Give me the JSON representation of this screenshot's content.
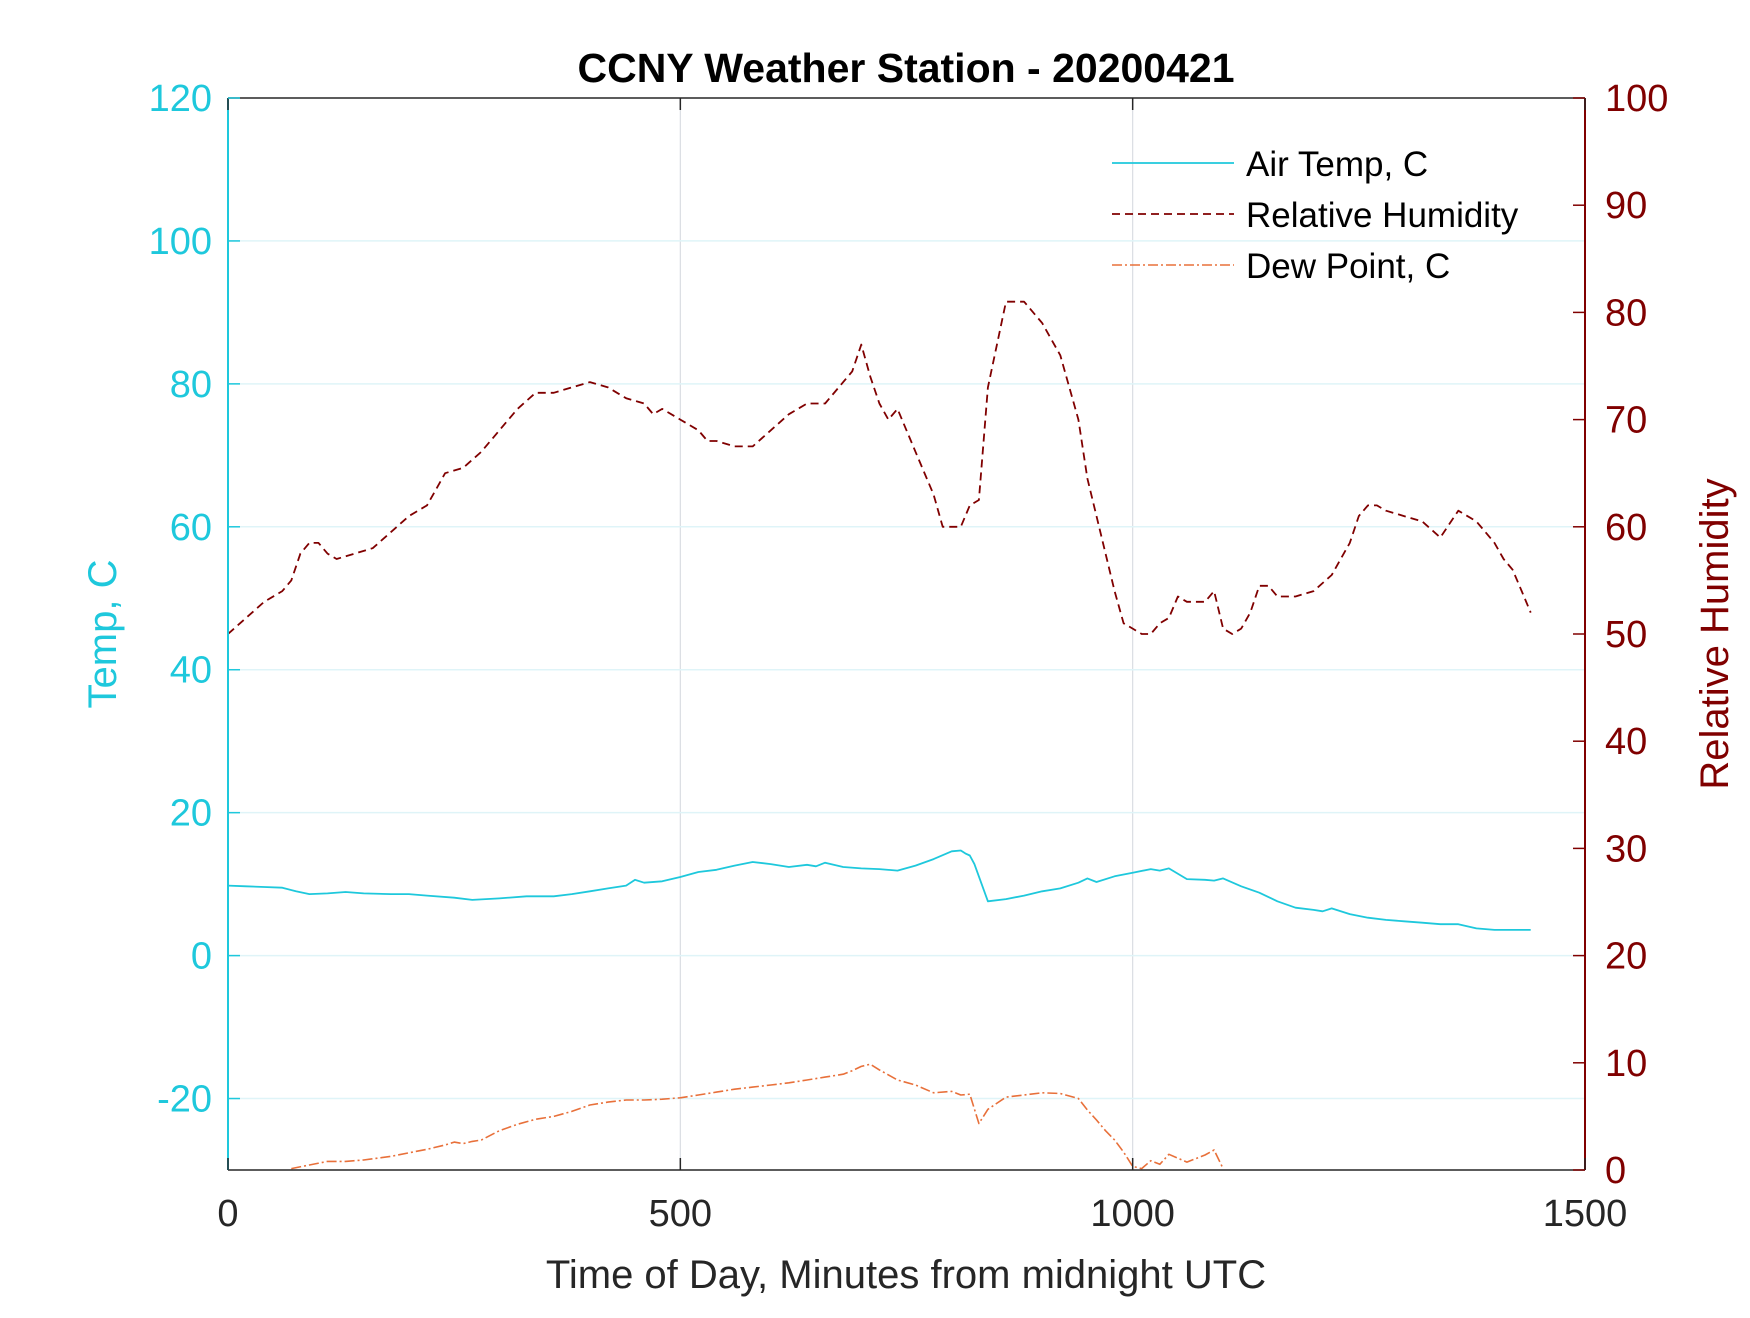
{
  "chart_data": {
    "type": "line",
    "title": "CCNY Weather Station - 20200421",
    "xlabel": "Time of Day, Minutes from midnight UTC",
    "ylabel_left": "Temp, C",
    "ylabel_right": "Relative Humidity",
    "xlim": [
      0,
      1500
    ],
    "ylim_left": [
      -30,
      120
    ],
    "ylim_right": [
      0,
      100
    ],
    "x_ticks": [
      0,
      500,
      1000,
      1500
    ],
    "y_ticks_left": [
      -20,
      0,
      20,
      40,
      60,
      80,
      100,
      120
    ],
    "y_ticks_right": [
      0,
      10,
      20,
      30,
      40,
      50,
      60,
      70,
      80,
      90,
      100
    ],
    "x_grid": true,
    "y_grid": true,
    "legend_position": "top-right",
    "colors": {
      "left_axis": "#1ec8dc",
      "right_axis": "#800000",
      "air_temp": "#1ec8dc",
      "humidity": "#800000",
      "dew_point": "#e8703a",
      "grid": "#d9dde3",
      "frame": "#000000"
    },
    "series": [
      {
        "name": "Air Temp, C",
        "axis": "left",
        "style": "solid",
        "x": [
          0,
          20,
          40,
          60,
          75,
          90,
          110,
          130,
          150,
          180,
          200,
          220,
          250,
          270,
          300,
          330,
          360,
          380,
          400,
          420,
          440,
          450,
          460,
          480,
          500,
          520,
          540,
          560,
          580,
          600,
          620,
          640,
          650,
          660,
          680,
          700,
          720,
          740,
          760,
          780,
          800,
          810,
          815,
          820,
          825,
          840,
          860,
          880,
          900,
          920,
          940,
          950,
          960,
          980,
          1000,
          1020,
          1030,
          1040,
          1060,
          1080,
          1090,
          1100,
          1120,
          1140,
          1160,
          1180,
          1200,
          1210,
          1220,
          1240,
          1260,
          1280,
          1300,
          1320,
          1340,
          1360,
          1380,
          1400,
          1420,
          1440
        ],
        "y": [
          9.8,
          9.7,
          9.6,
          9.5,
          9.0,
          8.6,
          8.7,
          8.9,
          8.7,
          8.6,
          8.6,
          8.4,
          8.1,
          7.8,
          8.0,
          8.3,
          8.3,
          8.6,
          9.0,
          9.4,
          9.8,
          10.6,
          10.2,
          10.4,
          11.0,
          11.7,
          12.0,
          12.6,
          13.1,
          12.8,
          12.4,
          12.7,
          12.5,
          13.0,
          12.4,
          12.2,
          12.1,
          11.9,
          12.6,
          13.5,
          14.6,
          14.7,
          14.3,
          14.0,
          12.8,
          7.6,
          7.9,
          8.4,
          9.0,
          9.4,
          10.2,
          10.8,
          10.3,
          11.1,
          11.6,
          12.1,
          11.9,
          12.2,
          10.7,
          10.6,
          10.5,
          10.8,
          9.7,
          8.8,
          7.6,
          6.7,
          6.4,
          6.2,
          6.6,
          5.8,
          5.3,
          5.0,
          4.8,
          4.6,
          4.4,
          4.4,
          3.8,
          3.6,
          3.6,
          3.6
        ]
      },
      {
        "name": "Relative Humidity",
        "axis": "right",
        "style": "dashed",
        "x": [
          0,
          20,
          40,
          60,
          70,
          80,
          90,
          100,
          110,
          120,
          140,
          160,
          180,
          200,
          220,
          230,
          240,
          260,
          280,
          300,
          320,
          340,
          360,
          380,
          400,
          420,
          430,
          440,
          460,
          470,
          480,
          500,
          520,
          530,
          540,
          560,
          580,
          600,
          620,
          640,
          660,
          680,
          690,
          700,
          710,
          720,
          730,
          740,
          760,
          780,
          790,
          800,
          810,
          820,
          830,
          840,
          860,
          880,
          900,
          920,
          940,
          950,
          960,
          980,
          990,
          1000,
          1010,
          1020,
          1030,
          1040,
          1050,
          1060,
          1070,
          1080,
          1090,
          1100,
          1110,
          1120,
          1130,
          1140,
          1150,
          1160,
          1180,
          1200,
          1220,
          1230,
          1240,
          1250,
          1260,
          1270,
          1280,
          1300,
          1320,
          1340,
          1360,
          1380,
          1400,
          1410,
          1420,
          1430,
          1440
        ],
        "y": [
          50,
          51.5,
          53,
          54,
          55,
          57.5,
          58.5,
          58.5,
          57.5,
          57,
          57.5,
          58,
          59.5,
          61,
          62,
          63.5,
          65,
          65.5,
          67,
          69,
          71,
          72.5,
          72.5,
          73,
          73.5,
          73,
          72.5,
          72,
          71.5,
          70.5,
          71,
          70,
          69,
          68,
          68,
          67.5,
          67.5,
          69,
          70.5,
          71.5,
          71.5,
          73.5,
          74.5,
          77,
          74,
          71.5,
          70,
          71,
          67,
          63,
          60,
          60,
          60,
          62,
          62.5,
          73,
          81,
          81,
          79,
          76,
          70,
          64.5,
          61,
          54,
          51,
          50.5,
          50,
          50,
          51,
          51.5,
          53.5,
          53,
          53,
          53,
          54,
          50.5,
          50,
          50.5,
          52,
          54.5,
          54.5,
          53.5,
          53.5,
          54,
          55.5,
          57,
          58.5,
          61,
          62,
          62,
          61.5,
          61,
          60.5,
          59,
          61.5,
          60.5,
          58.5,
          57,
          56,
          54,
          52
        ]
      },
      {
        "name": "Dew Point, C",
        "axis": "left",
        "style": "dashdot",
        "x": [
          70,
          90,
          110,
          130,
          150,
          180,
          200,
          220,
          240,
          250,
          260,
          270,
          280,
          300,
          320,
          340,
          360,
          380,
          400,
          420,
          440,
          460,
          480,
          500,
          520,
          540,
          560,
          580,
          600,
          620,
          640,
          660,
          680,
          690,
          700,
          710,
          720,
          740,
          760,
          780,
          800,
          810,
          820,
          830,
          840,
          860,
          880,
          900,
          920,
          940,
          950,
          960,
          970,
          980,
          990,
          1000,
          1010,
          1020,
          1030,
          1040,
          1060,
          1080,
          1090,
          1100
        ],
        "y": [
          -29.8,
          -29.3,
          -28.8,
          -28.8,
          -28.6,
          -28.1,
          -27.6,
          -27.1,
          -26.5,
          -26.1,
          -26.3,
          -26.0,
          -25.8,
          -24.5,
          -23.6,
          -22.9,
          -22.5,
          -21.8,
          -20.9,
          -20.5,
          -20.2,
          -20.2,
          -20.1,
          -19.9,
          -19.5,
          -19.1,
          -18.7,
          -18.4,
          -18.1,
          -17.8,
          -17.4,
          -17.0,
          -16.6,
          -16.1,
          -15.5,
          -15.2,
          -16.0,
          -17.4,
          -18.1,
          -19.2,
          -19.0,
          -19.5,
          -19.4,
          -23.5,
          -21.5,
          -19.8,
          -19.5,
          -19.2,
          -19.3,
          -20.0,
          -21.6,
          -23.0,
          -24.5,
          -25.8,
          -27.5,
          -29.5,
          -29.8,
          -28.7,
          -29.2,
          -27.8,
          -28.9,
          -27.9,
          -27.2,
          -29.8
        ]
      }
    ]
  }
}
